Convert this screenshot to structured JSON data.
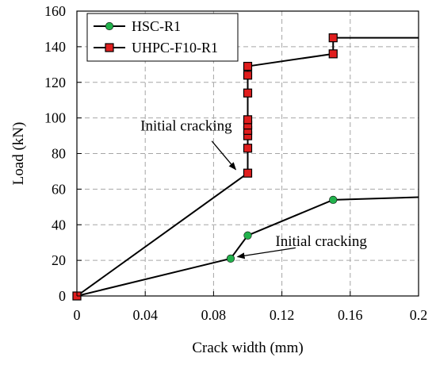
{
  "chart_data": {
    "type": "line",
    "xlabel": "Crack width (mm)",
    "ylabel": "Load (kN)",
    "xlim": [
      0,
      0.2
    ],
    "ylim": [
      0,
      160
    ],
    "x_ticks": [
      0,
      0.04,
      0.08,
      0.12,
      0.16,
      0.2
    ],
    "x_tick_labels": [
      "0",
      "0.04",
      "0.08",
      "0.12",
      "0.16",
      "0.2"
    ],
    "y_ticks": [
      0,
      20,
      40,
      60,
      80,
      100,
      120,
      140,
      160
    ],
    "y_tick_labels": [
      "0",
      "20",
      "40",
      "60",
      "80",
      "100",
      "120",
      "140",
      "160"
    ],
    "grid": true,
    "legend_position": "top-left",
    "series": [
      {
        "name": "HSC-R1",
        "color": "#22b24c",
        "marker": "circle",
        "x": [
          0,
          0.09,
          0.1,
          0.15,
          0.2
        ],
        "y": [
          0,
          21,
          34,
          54,
          55.5
        ],
        "marked": [
          true,
          true,
          true,
          true,
          false
        ]
      },
      {
        "name": "UHPC-F10-R1",
        "color": "#e01e1e",
        "marker": "square",
        "x": [
          0,
          0.1,
          0.1,
          0.1,
          0.1,
          0.1,
          0.1,
          0.1,
          0.1,
          0.1,
          0.1,
          0.15,
          0.15,
          0.15,
          0.2
        ],
        "y": [
          0,
          69,
          83,
          90,
          93,
          96,
          99,
          114,
          124,
          129,
          129,
          136,
          145,
          145,
          145
        ],
        "marked": [
          true,
          true,
          true,
          true,
          true,
          true,
          true,
          true,
          true,
          true,
          false,
          true,
          true,
          false,
          false
        ]
      }
    ],
    "annotations": [
      {
        "text": "Initial cracking",
        "text_at": [
          0.064,
          93
        ],
        "arrow_from": [
          0.079,
          87
        ],
        "arrow_to": [
          0.093,
          71
        ]
      },
      {
        "text": "Initial cracking",
        "text_at": [
          0.143,
          28
        ],
        "arrow_from": [
          0.128,
          27
        ],
        "arrow_to": [
          0.094,
          22
        ]
      }
    ]
  }
}
